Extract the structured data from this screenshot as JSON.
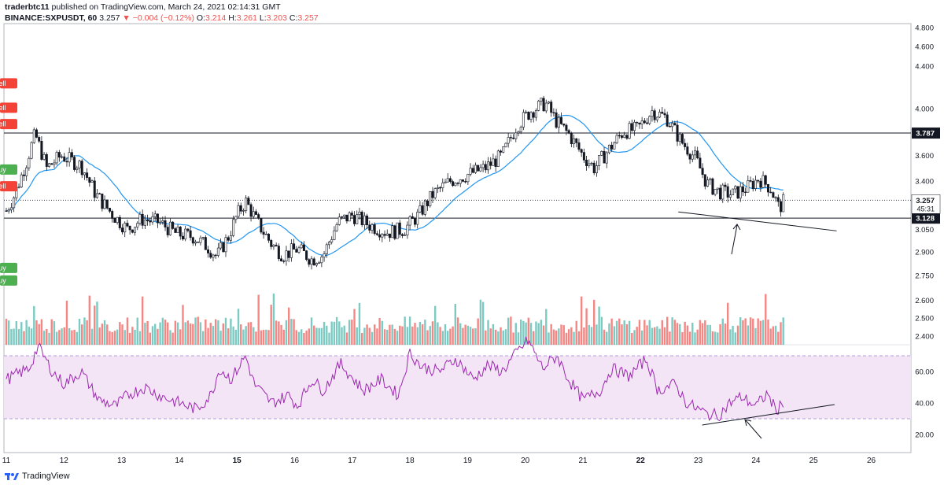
{
  "header": {
    "publisher": "traderbtc11",
    "published_text": "published on TradingView.com, March 24, 2021 02:14:31 GMT",
    "symbol": "BINANCE:SXPUSDT, 60",
    "last": "3.257",
    "change": "−0.004 (−0.12%)",
    "o_label": "O:",
    "o": "3.214",
    "h_label": "H:",
    "h": "3.261",
    "l_label": "L:",
    "l": "3.203",
    "c_label": "C:",
    "c": "3.257"
  },
  "footer": {
    "brand": "TradingView"
  },
  "colors": {
    "up": "#26a69a",
    "down": "#ef5350",
    "sma": "#2196f3",
    "trend_up": "#4caf50",
    "trend_down": "#f44336",
    "rsi": "#9c27b0",
    "rsi_band": "#f3e5f5"
  },
  "chart_data": [
    {
      "type": "candlestick",
      "x_ticks": [
        "11",
        "12",
        "13",
        "14",
        "15",
        "16",
        "17",
        "18",
        "19",
        "20",
        "21",
        "22",
        "23",
        "24",
        "25",
        "26"
      ],
      "x_tick_day_index": [
        0,
        1,
        2,
        3,
        4,
        5,
        6,
        7,
        8,
        9,
        10,
        11,
        12,
        13,
        14,
        15
      ],
      "y_ticks": [
        "4.800",
        "4.600",
        "4.400",
        "4.000",
        "3.600",
        "3.400",
        "3.050",
        "2.900",
        "2.750",
        "2.600",
        "2.500",
        "2.400"
      ],
      "y_tick_values": [
        4.8,
        4.6,
        4.4,
        4.0,
        3.6,
        3.4,
        3.05,
        2.9,
        2.75,
        2.6,
        2.5,
        2.4
      ],
      "y_scale": "log",
      "horizontal_levels": [
        {
          "label": "3.787",
          "value": 3.787
        },
        {
          "label": "3.128",
          "value": 3.128
        }
      ],
      "current_price": {
        "label": "3.257",
        "value": 3.257,
        "countdown": "45:31"
      },
      "close_path": [
        [
          0,
          3.18
        ],
        [
          0.15,
          3.3
        ],
        [
          0.35,
          3.55
        ],
        [
          0.5,
          3.78
        ],
        [
          0.7,
          3.5
        ],
        [
          0.95,
          3.6
        ],
        [
          1.3,
          3.52
        ],
        [
          1.55,
          3.3
        ],
        [
          1.85,
          3.15
        ],
        [
          2.1,
          3.05
        ],
        [
          2.35,
          3.12
        ],
        [
          2.65,
          3.1
        ],
        [
          2.95,
          3.02
        ],
        [
          3.25,
          3.0
        ],
        [
          3.5,
          2.93
        ],
        [
          3.65,
          2.87
        ],
        [
          3.85,
          3.0
        ],
        [
          4.0,
          3.15
        ],
        [
          4.15,
          3.25
        ],
        [
          4.35,
          3.1
        ],
        [
          4.6,
          2.95
        ],
        [
          4.8,
          2.88
        ],
        [
          5.05,
          2.92
        ],
        [
          5.3,
          2.85
        ],
        [
          5.5,
          2.88
        ],
        [
          5.75,
          3.1
        ],
        [
          6.0,
          3.15
        ],
        [
          6.3,
          3.08
        ],
        [
          6.6,
          3.03
        ],
        [
          6.9,
          3.05
        ],
        [
          7.15,
          3.15
        ],
        [
          7.4,
          3.3
        ],
        [
          7.7,
          3.4
        ],
        [
          8.0,
          3.45
        ],
        [
          8.3,
          3.5
        ],
        [
          8.6,
          3.6
        ],
        [
          8.85,
          3.85
        ],
        [
          9.1,
          3.98
        ],
        [
          9.35,
          4.05
        ],
        [
          9.55,
          3.88
        ],
        [
          9.75,
          3.78
        ],
        [
          10.0,
          3.6
        ],
        [
          10.2,
          3.5
        ],
        [
          10.45,
          3.65
        ],
        [
          10.7,
          3.8
        ],
        [
          10.95,
          3.82
        ],
        [
          11.2,
          3.98
        ],
        [
          11.45,
          3.92
        ],
        [
          11.7,
          3.72
        ],
        [
          11.95,
          3.58
        ],
        [
          12.15,
          3.38
        ],
        [
          12.35,
          3.32
        ],
        [
          12.6,
          3.3
        ],
        [
          12.85,
          3.35
        ],
        [
          13.05,
          3.42
        ],
        [
          13.25,
          3.35
        ],
        [
          13.4,
          3.2
        ],
        [
          13.5,
          3.257
        ]
      ],
      "supertrend": [
        {
          "signal": "Sell",
          "day": 1.53,
          "value": 3.76
        },
        {
          "signal": "Buy",
          "day": 3.6,
          "value": 2.79
        },
        {
          "signal": "Sell",
          "day": 4.45,
          "value": 3.27
        },
        {
          "signal": "Buy",
          "day": 5.55,
          "value": 2.87
        },
        {
          "signal": "Sell",
          "day": 9.68,
          "value": 4.12
        },
        {
          "signal": "Buy",
          "day": 10.82,
          "value": 3.58
        },
        {
          "signal": "Sell",
          "day": 11.85,
          "value": 3.9
        }
      ],
      "trendline_values": {
        "from": [
          12.2,
          3.15
        ],
        "to": [
          14.4,
          3.04
        ]
      }
    },
    {
      "type": "bar",
      "series": [
        {
          "values_relative": "volume bars, colored by candle direction"
        }
      ]
    },
    {
      "type": "line",
      "y_ticks": [
        "60.00",
        "40.00",
        "20.00"
      ],
      "y_tick_values": [
        60,
        40,
        20
      ],
      "bands": [
        30,
        70
      ],
      "series": [
        {
          "path": [
            [
              0,
              55
            ],
            [
              0.4,
              62
            ],
            [
              0.55,
              76
            ],
            [
              0.8,
              60
            ],
            [
              1.0,
              52
            ],
            [
              1.3,
              60
            ],
            [
              1.6,
              42
            ],
            [
              1.9,
              38
            ],
            [
              2.1,
              45
            ],
            [
              2.4,
              50
            ],
            [
              2.7,
              44
            ],
            [
              3.0,
              40
            ],
            [
              3.3,
              36
            ],
            [
              3.55,
              45
            ],
            [
              3.7,
              62
            ],
            [
              3.9,
              55
            ],
            [
              4.15,
              70
            ],
            [
              4.3,
              52
            ],
            [
              4.6,
              40
            ],
            [
              4.9,
              45
            ],
            [
              5.05,
              38
            ],
            [
              5.3,
              55
            ],
            [
              5.5,
              48
            ],
            [
              5.8,
              65
            ],
            [
              6.0,
              56
            ],
            [
              6.2,
              48
            ],
            [
              6.5,
              55
            ],
            [
              6.8,
              45
            ],
            [
              7.0,
              72
            ],
            [
              7.2,
              63
            ],
            [
              7.5,
              60
            ],
            [
              7.8,
              68
            ],
            [
              8.1,
              55
            ],
            [
              8.35,
              64
            ],
            [
              8.6,
              60
            ],
            [
              8.85,
              72
            ],
            [
              9.05,
              80
            ],
            [
              9.3,
              62
            ],
            [
              9.55,
              70
            ],
            [
              9.75,
              55
            ],
            [
              10.0,
              42
            ],
            [
              10.3,
              48
            ],
            [
              10.5,
              62
            ],
            [
              10.8,
              57
            ],
            [
              11.1,
              68
            ],
            [
              11.3,
              48
            ],
            [
              11.6,
              52
            ],
            [
              11.8,
              40
            ],
            [
              12.0,
              36
            ],
            [
              12.15,
              33
            ],
            [
              12.35,
              32
            ],
            [
              12.55,
              40
            ],
            [
              12.75,
              44
            ],
            [
              13.0,
              38
            ],
            [
              13.2,
              46
            ],
            [
              13.35,
              35
            ],
            [
              13.5,
              42
            ]
          ]
        }
      ],
      "trendline_values": {
        "from": [
          12.0,
          26
        ],
        "to": [
          14.5,
          39
        ]
      }
    }
  ]
}
